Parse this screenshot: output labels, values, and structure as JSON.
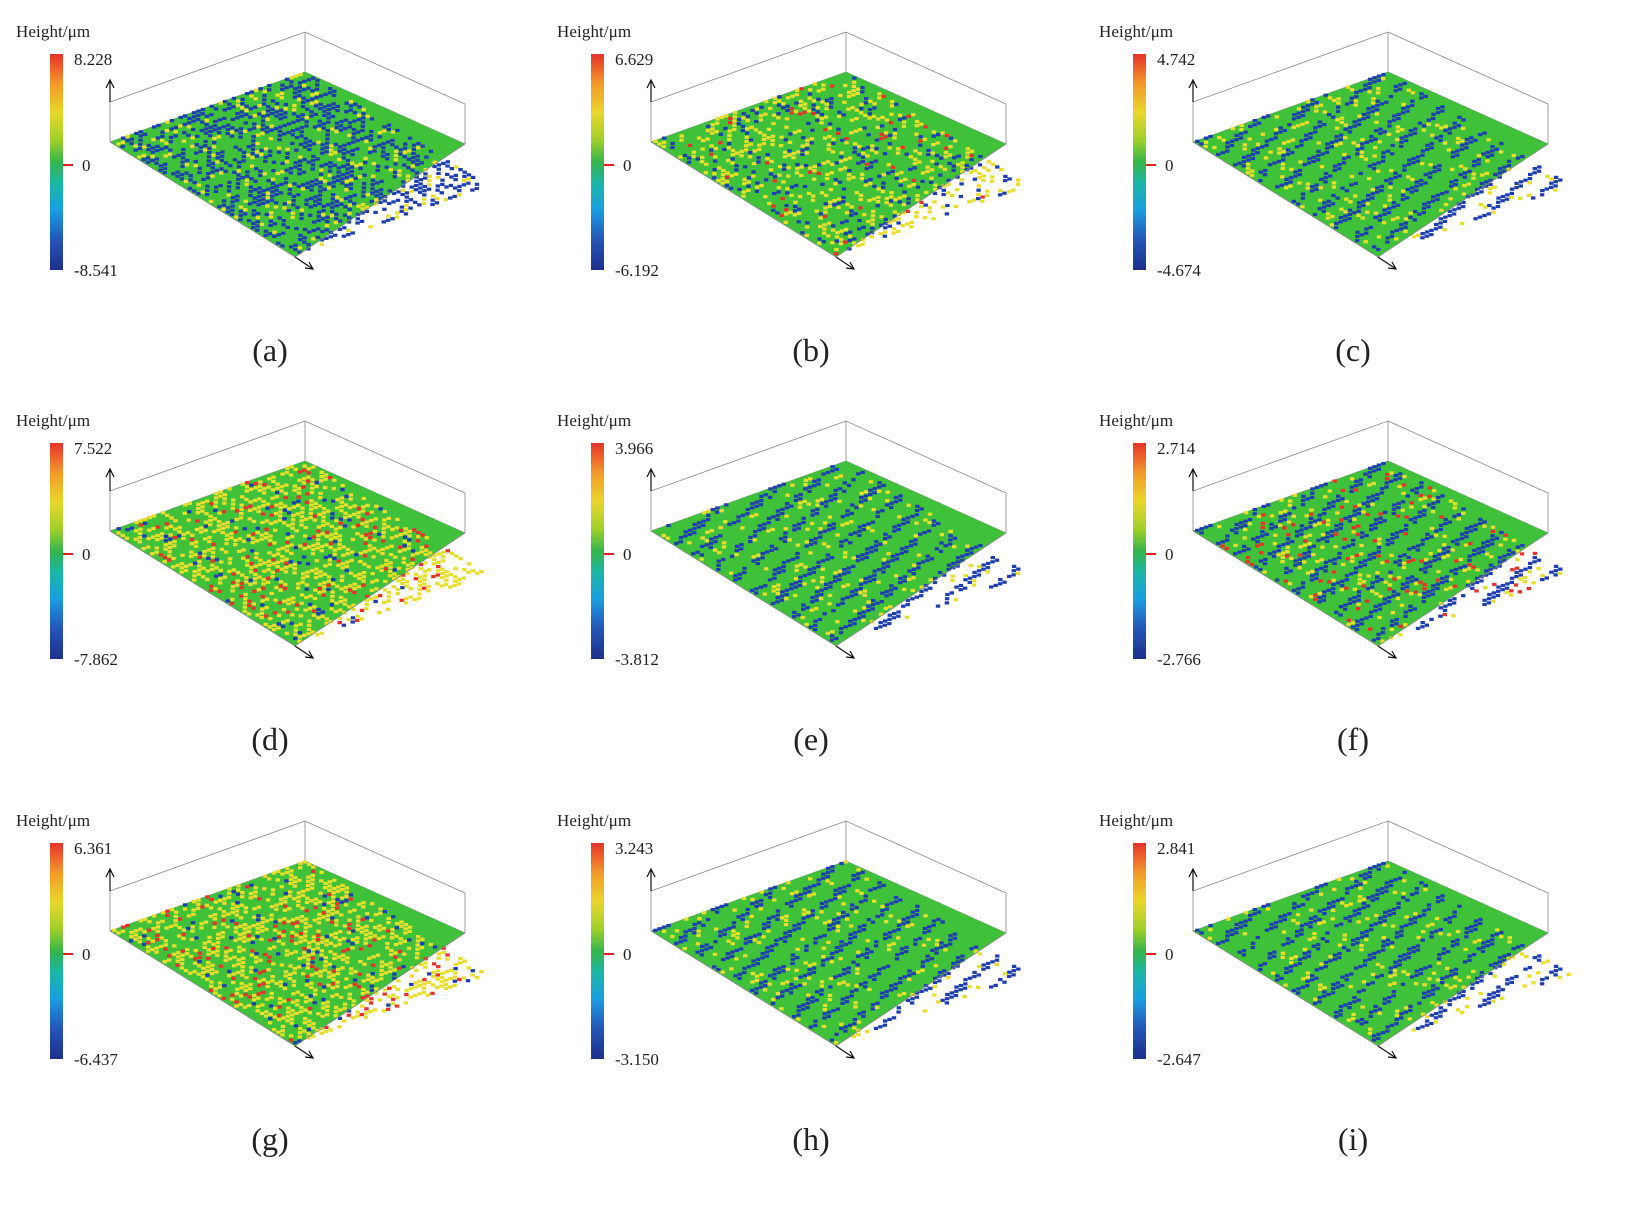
{
  "panels": [
    {
      "id": "a",
      "label": "(a)",
      "colorbar_title": "Height/μm",
      "max": "8.228",
      "zero": "0",
      "min": "-8.541"
    },
    {
      "id": "b",
      "label": "(b)",
      "colorbar_title": "Height/μm",
      "max": "6.629",
      "zero": "0",
      "min": "-6.192"
    },
    {
      "id": "c",
      "label": "(c)",
      "colorbar_title": "Height/μm",
      "max": "4.742",
      "zero": "0",
      "min": "-4.674"
    },
    {
      "id": "d",
      "label": "(d)",
      "colorbar_title": "Height/μm",
      "max": "7.522",
      "zero": "0",
      "min": "-7.862"
    },
    {
      "id": "e",
      "label": "(e)",
      "colorbar_title": "Height/μm",
      "max": "3.966",
      "zero": "0",
      "min": "-3.812"
    },
    {
      "id": "f",
      "label": "(f)",
      "colorbar_title": "Height/μm",
      "max": "2.714",
      "zero": "0",
      "min": "-2.766"
    },
    {
      "id": "g",
      "label": "(g)",
      "colorbar_title": "Height/μm",
      "max": "6.361",
      "zero": "0",
      "min": "-6.437"
    },
    {
      "id": "h",
      "label": "(h)",
      "colorbar_title": "Height/μm",
      "max": "3.243",
      "zero": "0",
      "min": "-3.150"
    },
    {
      "id": "i",
      "label": "(i)",
      "colorbar_title": "Height/μm",
      "max": "2.841",
      "zero": "0",
      "min": "-2.647"
    }
  ],
  "colors": {
    "surface_green": "#3fc23a",
    "surface_yellow": "#e8de2c",
    "surface_blue": "#1f3fb0",
    "surface_red": "#e8322a",
    "axis_line": "#888888"
  }
}
